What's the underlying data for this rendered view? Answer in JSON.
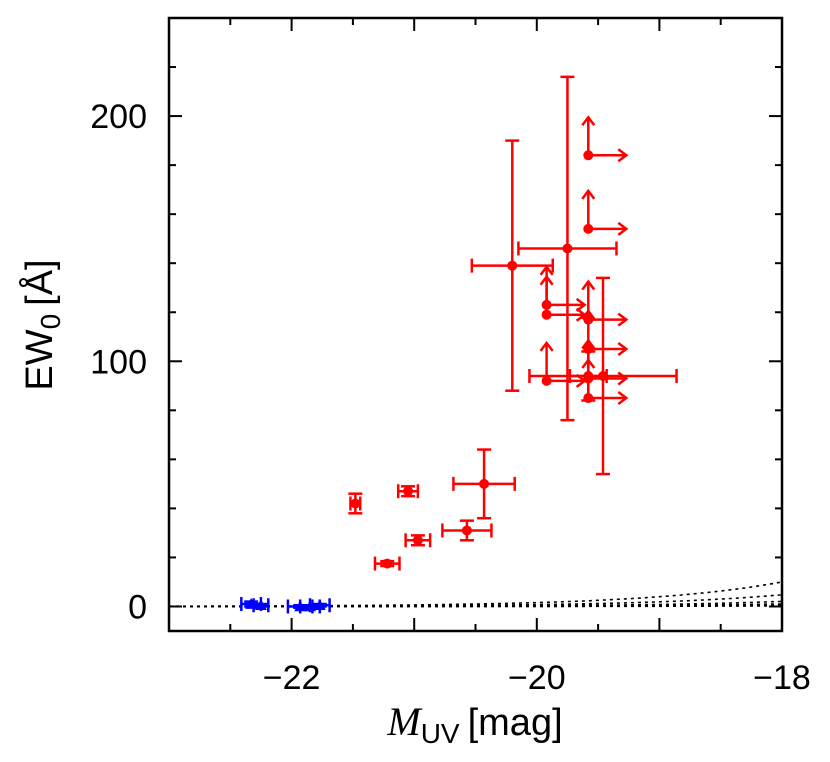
{
  "chart_data": {
    "type": "scatter",
    "title": "",
    "xlabel": "M_UV [mag]",
    "xlabel_main": "M",
    "xlabel_sub": "UV",
    "xlabel_unit": "[mag]",
    "ylabel": "EW_0 [Å]",
    "ylabel_main": "EW",
    "ylabel_sub": "0",
    "ylabel_unit": "[Å]",
    "xlim": [
      -23,
      -18
    ],
    "ylim": [
      -10,
      240
    ],
    "x_ticks": [
      -22,
      -20,
      -18
    ],
    "x_tick_labels": [
      "−22",
      "−20",
      "−18"
    ],
    "y_ticks": [
      0,
      100,
      200
    ],
    "y_tick_labels": [
      "0",
      "100",
      "200"
    ],
    "grid": false,
    "curves": [
      {
        "name": "limit-1",
        "a": 0.1,
        "c": -23.0
      },
      {
        "name": "limit-2",
        "a": 0.1,
        "c": -22.2
      },
      {
        "name": "limit-3",
        "a": 0.1,
        "c": -21.3
      },
      {
        "name": "limit-4",
        "a": 0.1,
        "c": -20.55
      },
      {
        "name": "limit-5",
        "a": 0.1,
        "c": -19.7
      },
      {
        "name": "limit-6",
        "a": 0.1,
        "c": -18.9
      }
    ],
    "series": [
      {
        "name": "red-points",
        "color": "#ff0000",
        "marker": "circle",
        "points": [
          {
            "x": -21.48,
            "y": 42,
            "xerr": 0.04,
            "yerr": 4
          },
          {
            "x": -21.05,
            "y": 47,
            "xerr": 0.08,
            "yerr": 2
          },
          {
            "x": -21.22,
            "y": 17.5,
            "xerr": 0.1,
            "yerr": 1
          },
          {
            "x": -20.97,
            "y": 27,
            "xerr": 0.1,
            "yerr": 2
          },
          {
            "x": -20.57,
            "y": 31,
            "xerr": 0.2,
            "yerr": 4
          },
          {
            "x": -20.43,
            "y": 50,
            "xerr": 0.25,
            "yerr": 14
          },
          {
            "x": -20.2,
            "y": 139,
            "xerr": 0.33,
            "yerr": 51
          },
          {
            "x": -19.75,
            "y": 146,
            "xerr": 0.4,
            "yerr": 70
          },
          {
            "x": -19.46,
            "y": 94,
            "xerr": 0.6,
            "yerr": 40
          },
          {
            "x": -19.58,
            "y": 94,
            "xerr": 0.15,
            "yerr": 10
          }
        ]
      },
      {
        "name": "red-lower-limits",
        "color": "#ff0000",
        "marker": "circle",
        "limit": "upper-right",
        "points": [
          {
            "x": -19.58,
            "y": 184
          },
          {
            "x": -19.58,
            "y": 154
          },
          {
            "x": -19.92,
            "y": 123
          },
          {
            "x": -19.92,
            "y": 119
          },
          {
            "x": -19.58,
            "y": 117
          },
          {
            "x": -19.58,
            "y": 105
          },
          {
            "x": -19.92,
            "y": 92
          },
          {
            "x": -19.58,
            "y": 93
          },
          {
            "x": -19.58,
            "y": 85
          }
        ]
      },
      {
        "name": "blue-points",
        "color": "#0000ff",
        "marker": "triangle",
        "points": [
          {
            "x": -22.33,
            "y": 1,
            "xerr": 0.08,
            "yerr": 1
          },
          {
            "x": -22.25,
            "y": 0.5,
            "xerr": 0.06,
            "yerr": 0.5
          },
          {
            "x": -21.93,
            "y": 0,
            "xerr": 0.1,
            "yerr": 0.5
          },
          {
            "x": -21.85,
            "y": 0,
            "xerr": 0.08,
            "yerr": 0.5
          },
          {
            "x": -21.77,
            "y": 0.5,
            "xerr": 0.08,
            "yerr": 0.5
          }
        ]
      }
    ]
  }
}
